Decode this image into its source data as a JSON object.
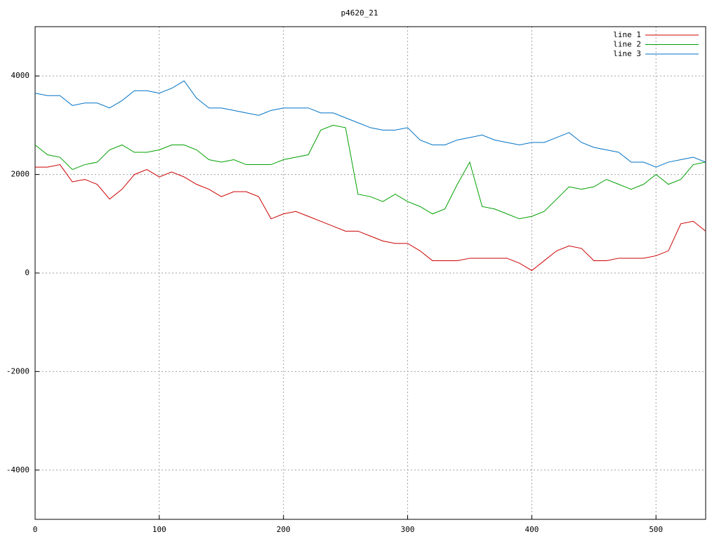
{
  "chart_data": {
    "type": "line",
    "title": "p4620_21",
    "x": [
      0,
      10,
      20,
      30,
      40,
      50,
      60,
      70,
      80,
      90,
      100,
      110,
      120,
      130,
      140,
      150,
      160,
      170,
      180,
      190,
      200,
      210,
      220,
      230,
      240,
      250,
      260,
      270,
      280,
      290,
      300,
      310,
      320,
      330,
      340,
      350,
      360,
      370,
      380,
      390,
      400,
      410,
      420,
      430,
      440,
      450,
      460,
      470,
      480,
      490,
      500,
      510,
      520,
      530,
      540
    ],
    "series": [
      {
        "name": "line 1",
        "color": "#cc0000",
        "values": [
          2150,
          2150,
          2200,
          1850,
          1900,
          1800,
          1500,
          1700,
          2000,
          2100,
          1950,
          2050,
          1950,
          1800,
          1700,
          1550,
          1650,
          1650,
          1550,
          1100,
          1200,
          1250,
          1150,
          1050,
          950,
          850,
          850,
          750,
          650,
          600,
          600,
          450,
          250,
          250,
          250,
          300,
          300,
          300,
          300,
          200,
          50,
          250,
          450,
          550,
          500,
          250,
          250,
          300,
          300,
          300,
          350,
          450,
          1000,
          1050,
          850
        ]
      },
      {
        "name": "line 2",
        "color": "#00a000",
        "values": [
          2600,
          2400,
          2350,
          2100,
          2200,
          2250,
          2500,
          2600,
          2450,
          2450,
          2500,
          2600,
          2600,
          2500,
          2300,
          2250,
          2300,
          2200,
          2200,
          2200,
          2300,
          2350,
          2400,
          2900,
          3000,
          2950,
          1600,
          1550,
          1450,
          1600,
          1450,
          1350,
          1200,
          1300,
          1800,
          2250,
          1350,
          1300,
          1200,
          1100,
          1150,
          1250,
          1500,
          1750,
          1700,
          1750,
          1900,
          1800,
          1700,
          1800,
          2000,
          1800,
          1900,
          2200,
          2250
        ]
      },
      {
        "name": "line 3",
        "color": "#0072c6",
        "values": [
          3650,
          3600,
          3600,
          3400,
          3450,
          3450,
          3350,
          3500,
          3700,
          3700,
          3650,
          3750,
          3900,
          3550,
          3350,
          3350,
          3300,
          3250,
          3200,
          3300,
          3350,
          3350,
          3350,
          3250,
          3250,
          3150,
          3050,
          2950,
          2900,
          2900,
          2950,
          2700,
          2600,
          2600,
          2700,
          2750,
          2800,
          2700,
          2650,
          2600,
          2650,
          2650,
          2750,
          2850,
          2650,
          2550,
          2500,
          2450,
          2250,
          2250,
          2150,
          2250,
          2300,
          2350,
          2250
        ]
      }
    ],
    "xlim": [
      0,
      540
    ],
    "xticks": [
      0,
      100,
      200,
      300,
      400,
      500
    ],
    "ylim": [
      -5000,
      5000
    ],
    "yticks": [
      -4000,
      -2000,
      0,
      2000,
      4000
    ],
    "grid": true,
    "legend": "top-right"
  }
}
